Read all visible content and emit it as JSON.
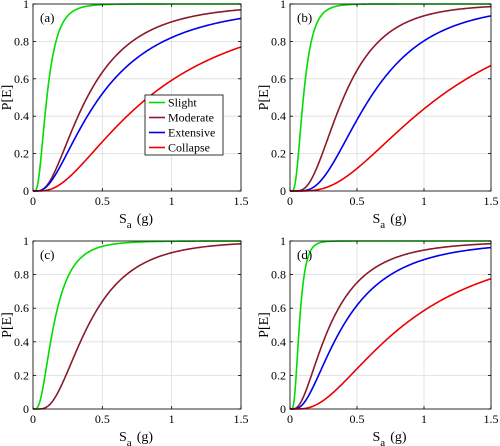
{
  "chart_data": [
    {
      "type": "line",
      "panel_label": "(a)",
      "xlabel_main": "S",
      "xlabel_sub": "a",
      "xlabel_unit": "(g)",
      "ylabel": "P[E]",
      "xlim": [
        0,
        1.5
      ],
      "ylim": [
        0,
        1
      ],
      "xticks": [
        "0",
        "0.5",
        "1",
        "1.5"
      ],
      "yticks": [
        "0",
        "0.2",
        "0.4",
        "0.6",
        "0.8",
        "1"
      ],
      "grid": true,
      "legend": "center-right",
      "series": [
        {
          "name": "Slight",
          "color": "#00dd00",
          "median": 0.1,
          "beta": 0.6,
          "x": [
            0,
            0.1,
            0.2,
            0.3,
            0.5,
            0.75,
            1.0,
            1.25,
            1.5
          ],
          "y": [
            0,
            0.5,
            0.88,
            0.97,
            1.0,
            1.0,
            1.0,
            1.0,
            1.0
          ]
        },
        {
          "name": "Moderate",
          "color": "#8b1a2b",
          "median": 0.39,
          "beta": 0.72,
          "x": [
            0,
            0.1,
            0.2,
            0.3,
            0.5,
            0.75,
            1.0,
            1.25,
            1.5
          ],
          "y": [
            0,
            0.03,
            0.18,
            0.36,
            0.63,
            0.82,
            0.91,
            0.95,
            0.97
          ]
        },
        {
          "name": "Extensive",
          "color": "#0000ee",
          "median": 0.48,
          "beta": 0.8,
          "x": [
            0,
            0.1,
            0.2,
            0.3,
            0.5,
            0.75,
            1.0,
            1.25,
            1.5
          ],
          "y": [
            0,
            0.03,
            0.14,
            0.28,
            0.52,
            0.71,
            0.82,
            0.88,
            0.92
          ]
        },
        {
          "name": "Collapse",
          "color": "#ee0000",
          "median": 0.83,
          "beta": 0.8,
          "x": [
            0,
            0.1,
            0.2,
            0.3,
            0.5,
            0.75,
            1.0,
            1.25,
            1.5
          ],
          "y": [
            0,
            0.0,
            0.04,
            0.1,
            0.26,
            0.45,
            0.59,
            0.7,
            0.77
          ]
        }
      ]
    },
    {
      "type": "line",
      "panel_label": "(b)",
      "xlabel_main": "S",
      "xlabel_sub": "a",
      "xlabel_unit": "(g)",
      "ylabel": "P[E]",
      "xlim": [
        0,
        1.5
      ],
      "ylim": [
        0,
        1
      ],
      "xticks": [
        "0",
        "0.5",
        "1",
        "1.5"
      ],
      "yticks": [
        "0",
        "0.2",
        "0.4",
        "0.6",
        "0.8",
        "1"
      ],
      "grid": true,
      "series": [
        {
          "name": "Slight",
          "color": "#00dd00",
          "median": 0.1,
          "beta": 0.55,
          "x": [
            0,
            0.1,
            0.2,
            0.3,
            0.5,
            0.75,
            1.0,
            1.25,
            1.5
          ],
          "y": [
            0,
            0.5,
            0.9,
            0.98,
            1.0,
            1.0,
            1.0,
            1.0,
            1.0
          ]
        },
        {
          "name": "Moderate",
          "color": "#8b1a2b",
          "median": 0.4,
          "beta": 0.6,
          "x": [
            0,
            0.1,
            0.2,
            0.3,
            0.5,
            0.75,
            1.0,
            1.25,
            1.5
          ],
          "y": [
            0,
            0.01,
            0.12,
            0.32,
            0.65,
            0.85,
            0.93,
            0.96,
            0.98
          ]
        },
        {
          "name": "Extensive",
          "color": "#0000ee",
          "median": 0.6,
          "beta": 0.6,
          "x": [
            0,
            0.1,
            0.2,
            0.3,
            0.5,
            0.75,
            1.0,
            1.25,
            1.5
          ],
          "y": [
            0,
            0.0,
            0.03,
            0.12,
            0.38,
            0.64,
            0.8,
            0.88,
            0.93
          ]
        },
        {
          "name": "Collapse",
          "color": "#ee0000",
          "median": 1.11,
          "beta": 0.68,
          "x": [
            0,
            0.1,
            0.2,
            0.3,
            0.5,
            0.75,
            1.0,
            1.25,
            1.5
          ],
          "y": [
            0,
            0.0,
            0.01,
            0.03,
            0.12,
            0.28,
            0.44,
            0.57,
            0.67
          ]
        }
      ]
    },
    {
      "type": "line",
      "panel_label": "(c)",
      "xlabel_main": "S",
      "xlabel_sub": "a",
      "xlabel_unit": "(g)",
      "ylabel": "P[E]",
      "xlim": [
        0,
        1.5
      ],
      "ylim": [
        0,
        1
      ],
      "xticks": [
        "0",
        "0.5",
        "1",
        "1.5"
      ],
      "yticks": [
        "0",
        "0.2",
        "0.4",
        "0.6",
        "0.8",
        "1"
      ],
      "grid": true,
      "series": [
        {
          "name": "Slight",
          "color": "#00dd00",
          "median": 0.15,
          "beta": 0.65,
          "x": [
            0,
            0.1,
            0.2,
            0.3,
            0.5,
            0.75,
            1.0,
            1.25,
            1.5
          ],
          "y": [
            0,
            0.27,
            0.67,
            0.86,
            0.97,
            0.99,
            1.0,
            1.0,
            1.0
          ]
        },
        {
          "name": "Moderate",
          "color": "#8b1a2b",
          "median": 0.4,
          "beta": 0.62,
          "x": [
            0,
            0.1,
            0.2,
            0.3,
            0.5,
            0.75,
            1.0,
            1.25,
            1.5
          ],
          "y": [
            0,
            0.01,
            0.13,
            0.32,
            0.64,
            0.84,
            0.93,
            0.96,
            0.98
          ]
        }
      ]
    },
    {
      "type": "line",
      "panel_label": "(d)",
      "xlabel_main": "S",
      "xlabel_sub": "a",
      "xlabel_unit": "(g)",
      "ylabel": "P[E]",
      "xlim": [
        0,
        1.5
      ],
      "ylim": [
        0,
        1
      ],
      "xticks": [
        "0",
        "0.5",
        "1",
        "1.5"
      ],
      "yticks": [
        "0",
        "0.2",
        "0.4",
        "0.6",
        "0.8",
        "1"
      ],
      "grid": true,
      "series": [
        {
          "name": "Slight",
          "color": "#00dd00",
          "median": 0.07,
          "beta": 0.5,
          "x": [
            0,
            0.1,
            0.2,
            0.3,
            0.5,
            0.75,
            1.0,
            1.25,
            1.5
          ],
          "y": [
            0,
            0.72,
            0.98,
            1.0,
            1.0,
            1.0,
            1.0,
            1.0,
            1.0
          ]
        },
        {
          "name": "Moderate",
          "color": "#8b1a2b",
          "median": 0.3,
          "beta": 0.75,
          "x": [
            0,
            0.1,
            0.2,
            0.3,
            0.5,
            0.75,
            1.0,
            1.25,
            1.5
          ],
          "y": [
            0,
            0.07,
            0.3,
            0.5,
            0.75,
            0.89,
            0.95,
            0.97,
            0.98
          ]
        },
        {
          "name": "Extensive",
          "color": "#0000ee",
          "median": 0.4,
          "beta": 0.75,
          "x": [
            0,
            0.1,
            0.2,
            0.3,
            0.5,
            0.75,
            1.0,
            1.25,
            1.5
          ],
          "y": [
            0,
            0.03,
            0.18,
            0.35,
            0.62,
            0.8,
            0.9,
            0.94,
            0.96
          ]
        },
        {
          "name": "Collapse",
          "color": "#ee0000",
          "median": 0.85,
          "beta": 0.75,
          "x": [
            0,
            0.1,
            0.2,
            0.3,
            0.5,
            0.75,
            1.0,
            1.25,
            1.5
          ],
          "y": [
            0,
            0.0,
            0.03,
            0.08,
            0.24,
            0.44,
            0.58,
            0.69,
            0.77
          ]
        }
      ]
    }
  ]
}
